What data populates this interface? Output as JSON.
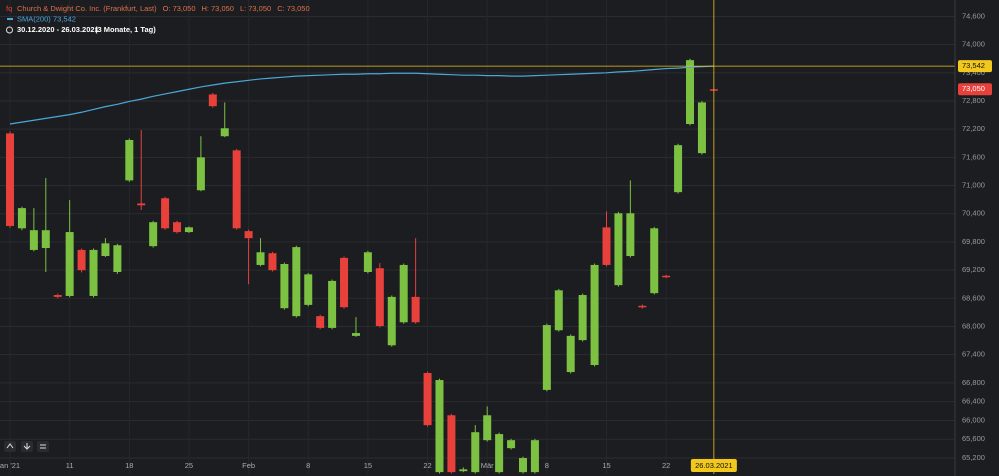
{
  "chart_data": {
    "type": "candlestick",
    "title": "Church & Dwight Co. Inc. (Frankfurt, Last)",
    "header_values": [
      {
        "label": "O:",
        "value": "73,050"
      },
      {
        "label": "H:",
        "value": "73,050"
      },
      {
        "label": "L:",
        "value": "73,050"
      },
      {
        "label": "C:",
        "value": "73,050"
      }
    ],
    "period": "30.12.2020 - 26.03.2021",
    "period_note": "(3 Monate, 1 Tag)",
    "categories": [
      "an '21",
      null,
      null,
      null,
      null,
      "11",
      null,
      null,
      null,
      null,
      "18",
      null,
      null,
      null,
      null,
      "25",
      null,
      null,
      null,
      null,
      "Feb",
      null,
      null,
      null,
      null,
      "8",
      null,
      null,
      null,
      null,
      "15",
      null,
      null,
      null,
      null,
      "22",
      null,
      null,
      null,
      null,
      "Mär",
      null,
      null,
      null,
      null,
      "8",
      null,
      null,
      null,
      null,
      "15",
      null,
      null,
      null,
      null,
      "22",
      null,
      null,
      null,
      "26.03.2021"
    ],
    "open": [
      72.11,
      70.09,
      69.63,
      69.67,
      68.67,
      68.65,
      69.63,
      68.65,
      69.5,
      69.16,
      71.11,
      70.62,
      69.71,
      70.73,
      70.22,
      70.01,
      70.9,
      72.94,
      72.05,
      71.75,
      70.03,
      69.31,
      69.56,
      68.39,
      68.22,
      68.46,
      68.22,
      67.97,
      69.46,
      67.8,
      69.16,
      69.24,
      67.6,
      68.09,
      68.63,
      67.01,
      64.9,
      66.11,
      64.92,
      64.9,
      65.58,
      64.9,
      65.41,
      64.9,
      64.9,
      66.65,
      67.92,
      67.03,
      67.71,
      67.18,
      70.11,
      68.88,
      69.5,
      68.44,
      68.71,
      69.08,
      70.86,
      72.31,
      71.69,
      73.05
    ],
    "high": [
      72.15,
      70.55,
      70.52,
      71.16,
      68.7,
      70.69,
      69.66,
      69.66,
      69.88,
      69.76,
      72.0,
      72.18,
      70.25,
      70.76,
      70.25,
      70.13,
      72.05,
      72.97,
      72.77,
      71.78,
      70.06,
      69.88,
      69.59,
      69.36,
      69.72,
      69.14,
      68.25,
      69.0,
      69.49,
      68.2,
      69.61,
      69.35,
      68.66,
      69.34,
      69.88,
      67.04,
      66.89,
      66.14,
      65.0,
      65.9,
      66.3,
      65.74,
      65.61,
      65.23,
      65.61,
      68.06,
      68.8,
      67.83,
      68.7,
      69.34,
      70.45,
      70.44,
      71.11,
      68.47,
      70.12,
      69.1,
      71.89,
      73.7,
      72.8,
      73.05
    ],
    "low": [
      70.1,
      70.05,
      69.6,
      69.16,
      68.6,
      68.62,
      69.15,
      68.62,
      69.48,
      69.12,
      71.08,
      70.48,
      69.68,
      70.06,
      69.98,
      69.99,
      70.88,
      72.66,
      72.03,
      70.06,
      68.9,
      69.28,
      69.17,
      68.36,
      68.19,
      68.43,
      67.94,
      67.94,
      68.38,
      67.78,
      69.13,
      67.98,
      67.57,
      68.06,
      68.06,
      65.87,
      64.87,
      64.87,
      64.9,
      64.87,
      65.55,
      64.87,
      65.38,
      64.87,
      64.87,
      66.62,
      67.89,
      67.0,
      67.68,
      67.15,
      69.28,
      68.85,
      69.47,
      68.38,
      68.68,
      69.03,
      70.83,
      72.28,
      71.66,
      73.05
    ],
    "close": [
      70.14,
      70.52,
      70.05,
      70.05,
      68.63,
      70.01,
      69.2,
      69.63,
      69.77,
      69.73,
      71.97,
      70.58,
      70.22,
      70.09,
      70.01,
      70.11,
      71.6,
      72.69,
      72.22,
      70.09,
      69.88,
      69.58,
      69.2,
      69.33,
      69.69,
      69.11,
      67.97,
      68.97,
      68.41,
      67.86,
      69.58,
      68.01,
      68.63,
      69.31,
      68.09,
      65.9,
      66.86,
      64.9,
      64.96,
      65.75,
      66.11,
      65.71,
      65.58,
      65.2,
      65.58,
      68.03,
      68.77,
      67.8,
      68.67,
      69.31,
      69.31,
      70.41,
      70.41,
      68.41,
      70.09,
      69.05,
      71.86,
      73.67,
      72.77,
      73.05
    ],
    "up_color": "#7cc142",
    "down_color": "#e8403a",
    "last_price": {
      "value": 73.05,
      "label": "73,050"
    },
    "sma": {
      "name": "SMA(200)",
      "color": "#4aa8d8",
      "value_label": "73,542",
      "values": [
        72.31,
        72.35,
        72.39,
        72.43,
        72.47,
        72.51,
        72.56,
        72.62,
        72.68,
        72.73,
        72.79,
        72.84,
        72.9,
        72.95,
        73.0,
        73.05,
        73.1,
        73.14,
        73.18,
        73.21,
        73.24,
        73.27,
        73.29,
        73.31,
        73.33,
        73.34,
        73.35,
        73.36,
        73.37,
        73.37,
        73.38,
        73.38,
        73.39,
        73.39,
        73.39,
        73.38,
        73.37,
        73.36,
        73.35,
        73.35,
        73.34,
        73.34,
        73.33,
        73.33,
        73.34,
        73.35,
        73.36,
        73.37,
        73.38,
        73.39,
        73.4,
        73.42,
        73.43,
        73.45,
        73.47,
        73.49,
        73.5,
        73.52,
        73.53,
        73.542
      ]
    },
    "ylim": [
      64.86,
      74.95
    ],
    "yticks": [
      {
        "value": 65.2,
        "label": "65,200"
      },
      {
        "value": 65.6,
        "label": "65,600"
      },
      {
        "value": 66.0,
        "label": "66,000"
      },
      {
        "value": 66.4,
        "label": "66,400"
      },
      {
        "value": 66.8,
        "label": "66,800"
      },
      {
        "value": 67.4,
        "label": "67,400"
      },
      {
        "value": 68.0,
        "label": "68,000"
      },
      {
        "value": 68.6,
        "label": "68,600"
      },
      {
        "value": 69.2,
        "label": "69,200"
      },
      {
        "value": 69.8,
        "label": "69,800"
      },
      {
        "value": 70.4,
        "label": "70,400"
      },
      {
        "value": 71.0,
        "label": "71,000"
      },
      {
        "value": 71.6,
        "label": "71,600"
      },
      {
        "value": 72.2,
        "label": "72,200"
      },
      {
        "value": 72.8,
        "label": "72,800"
      },
      {
        "value": 73.4,
        "label": "73,400"
      },
      {
        "value": 74.0,
        "label": "74,000"
      },
      {
        "value": 74.6,
        "label": "74,600"
      }
    ],
    "grid": true
  }
}
